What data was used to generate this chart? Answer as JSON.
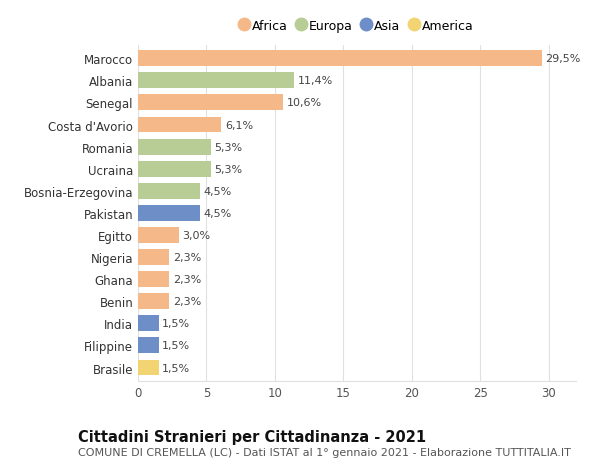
{
  "categories": [
    "Marocco",
    "Albania",
    "Senegal",
    "Costa d'Avorio",
    "Romania",
    "Ucraina",
    "Bosnia-Erzegovina",
    "Pakistan",
    "Egitto",
    "Nigeria",
    "Ghana",
    "Benin",
    "India",
    "Filippine",
    "Brasile"
  ],
  "values": [
    29.5,
    11.4,
    10.6,
    6.1,
    5.3,
    5.3,
    4.5,
    4.5,
    3.0,
    2.3,
    2.3,
    2.3,
    1.5,
    1.5,
    1.5
  ],
  "labels": [
    "29,5%",
    "11,4%",
    "10,6%",
    "6,1%",
    "5,3%",
    "5,3%",
    "4,5%",
    "4,5%",
    "3,0%",
    "2,3%",
    "2,3%",
    "2,3%",
    "1,5%",
    "1,5%",
    "1,5%"
  ],
  "continents": [
    "Africa",
    "Europa",
    "Africa",
    "Africa",
    "Europa",
    "Europa",
    "Europa",
    "Asia",
    "Africa",
    "Africa",
    "Africa",
    "Africa",
    "Asia",
    "Asia",
    "America"
  ],
  "continent_colors": {
    "Africa": "#F5B888",
    "Europa": "#B8CC96",
    "Asia": "#6E8EC8",
    "America": "#F2D472"
  },
  "title": "Cittadini Stranieri per Cittadinanza - 2021",
  "subtitle": "COMUNE DI CREMELLA (LC) - Dati ISTAT al 1° gennaio 2021 - Elaborazione TUTTITALIA.IT",
  "xlim": [
    0,
    32
  ],
  "xticks": [
    0,
    5,
    10,
    15,
    20,
    25,
    30
  ],
  "background_color": "#ffffff",
  "grid_color": "#e0e0e0",
  "bar_height": 0.72,
  "title_fontsize": 10.5,
  "subtitle_fontsize": 8,
  "label_fontsize": 8,
  "ytick_fontsize": 8.5,
  "xtick_fontsize": 8.5,
  "legend_fontsize": 9
}
